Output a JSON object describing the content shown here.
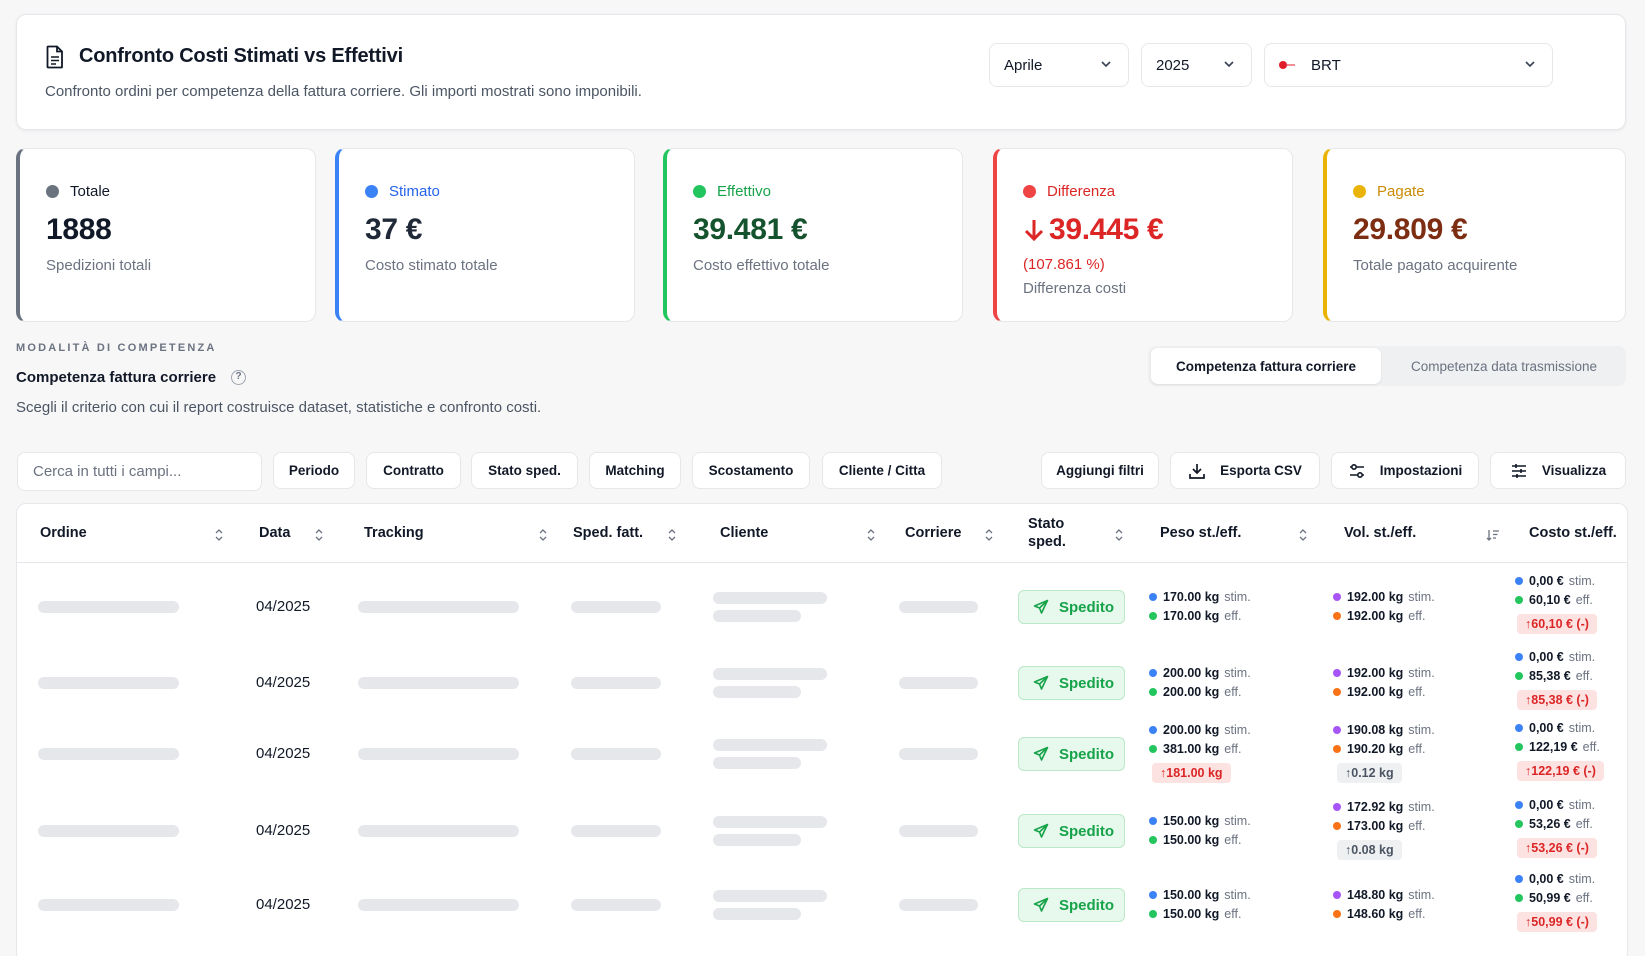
{
  "header": {
    "title": "Confronto Costi Stimati vs Effettivi",
    "subtitle": "Confronto ordini per competenza della fattura corriere. Gli importi mostrati sono imponibili.",
    "month": "Aprile",
    "year": "2025",
    "carrier": "BRT",
    "icon": "document-icon"
  },
  "stats": [
    {
      "label": "Totale",
      "value": "1888",
      "desc": "Spedizioni totali",
      "color": "#6b7280",
      "text_color": "#111827"
    },
    {
      "label": "Stimato",
      "value": "37 €",
      "desc": "Costo stimato totale",
      "color": "#3b82f6",
      "text_color": "#1f2937"
    },
    {
      "label": "Effettivo",
      "value": "39.481 €",
      "desc": "Costo effettivo totale",
      "color": "#22c55e",
      "text_color": "#14532d"
    },
    {
      "label": "Differenza",
      "value": "39.445 €",
      "sub": "(107.861 %)",
      "desc": "Differenza costi",
      "color": "#ef4444",
      "text_color": "#dc2626"
    },
    {
      "label": "Pagate",
      "value": "29.809 €",
      "desc": "Totale pagato acquirente",
      "color": "#eab308",
      "text_color": "#7c2d12"
    }
  ],
  "competenza": {
    "heading": "MODALITÀ DI COMPETENZA",
    "title": "Competenza fattura corriere",
    "help": "?",
    "desc": "Scegli il criterio con cui il report costruisce dataset, statistiche e confronto costi.",
    "options": [
      "Competenza fattura corriere",
      "Competenza data trasmissione"
    ],
    "active": 0
  },
  "toolbar": {
    "search_placeholder": "Cerca in tutti i campi...",
    "filters": [
      "Periodo",
      "Contratto",
      "Stato sped.",
      "Matching",
      "Scostamento",
      "Cliente / Citta"
    ],
    "add_filters": "Aggiungi filtri",
    "export": "Esporta CSV",
    "settings": "Impostazioni",
    "view": "Visualizza"
  },
  "table": {
    "columns": [
      "Ordine",
      "Data",
      "Tracking",
      "Sped. fatt.",
      "Cliente",
      "Corriere",
      "Stato sped.",
      "Peso st./eff.",
      "Vol. st./eff.",
      "Costo st./eff."
    ],
    "rows": [
      {
        "date": "04/2025",
        "status": "Spedito",
        "peso": {
          "stim": "170.00 kg",
          "eff": "170.00 kg"
        },
        "vol": {
          "stim": "192.00 kg",
          "eff": "192.00 kg"
        },
        "costo": {
          "stim": "0,00 €",
          "eff": "60,10 €",
          "diff": "↑60,10 € (-)"
        }
      },
      {
        "date": "04/2025",
        "status": "Spedito",
        "peso": {
          "stim": "200.00 kg",
          "eff": "200.00 kg"
        },
        "vol": {
          "stim": "192.00 kg",
          "eff": "192.00 kg"
        },
        "costo": {
          "stim": "0,00 €",
          "eff": "85,38 €",
          "diff": "↑85,38 € (-)"
        }
      },
      {
        "date": "04/2025",
        "status": "Spedito",
        "peso": {
          "stim": "200.00 kg",
          "eff": "381.00 kg",
          "diff": "↑181.00 kg"
        },
        "vol": {
          "stim": "190.08 kg",
          "eff": "190.20 kg",
          "diff": "↑0.12 kg"
        },
        "costo": {
          "stim": "0,00 €",
          "eff": "122,19 €",
          "diff": "↑122,19 € (-)"
        }
      },
      {
        "date": "04/2025",
        "status": "Spedito",
        "peso": {
          "stim": "150.00 kg",
          "eff": "150.00 kg"
        },
        "vol": {
          "stim": "172.92 kg",
          "eff": "173.00 kg",
          "diff": "↑0.08 kg"
        },
        "costo": {
          "stim": "0,00 €",
          "eff": "53,26 €",
          "diff": "↑53,26 € (-)"
        }
      },
      {
        "date": "04/2025",
        "status": "Spedito",
        "peso": {
          "stim": "150.00 kg",
          "eff": "150.00 kg"
        },
        "vol": {
          "stim": "148.80 kg",
          "eff": "148.60 kg"
        },
        "costo": {
          "stim": "0,00 €",
          "eff": "50,99 €",
          "diff": "↑50,99 € (-)"
        }
      }
    ],
    "stim_label": "stim.",
    "eff_label": "eff."
  },
  "colors": {
    "stim_blue": "#3b82f6",
    "eff_green": "#22c55e",
    "vol_purple": "#a855f7",
    "vol_orange": "#f97316",
    "accent_red": "#dc2626"
  }
}
